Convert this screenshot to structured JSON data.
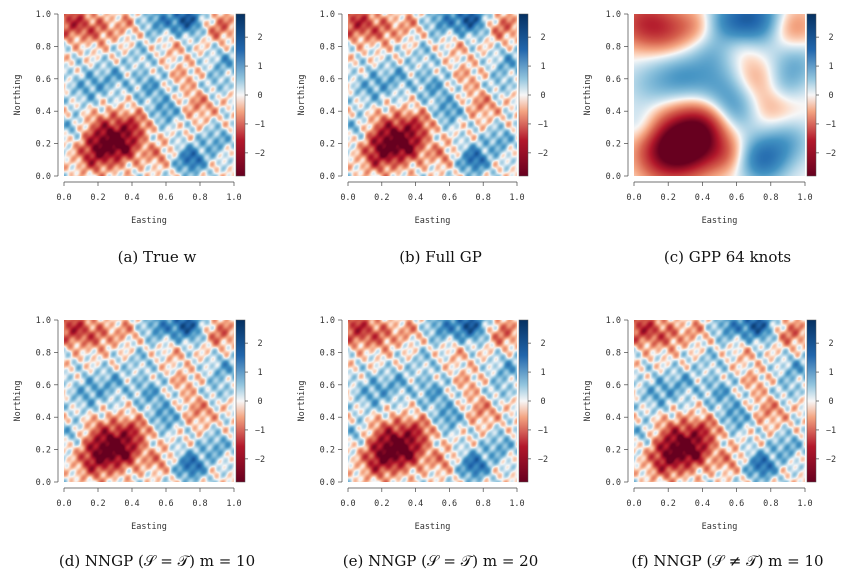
{
  "chart_data": [
    {
      "type": "heatmap",
      "caption": "(a)  True w",
      "variant": "fine",
      "seed": 1,
      "xlabel": "Easting",
      "ylabel": "Northing",
      "xlim": [
        0,
        1
      ],
      "ylim": [
        0,
        1
      ],
      "xticks": [
        "0.0",
        "0.2",
        "0.4",
        "0.6",
        "0.8",
        "1.0"
      ],
      "yticks": [
        "0.0",
        "0.2",
        "0.4",
        "0.6",
        "0.8",
        "1.0"
      ],
      "colorbar_ticks": [
        "2",
        "1",
        "0",
        "−1",
        "−2"
      ],
      "colorbar_range": [
        -2.8,
        2.8
      ]
    },
    {
      "type": "heatmap",
      "caption": "(b)  Full GP",
      "variant": "fine",
      "seed": 1,
      "xlabel": "Easting",
      "ylabel": "Northing",
      "xlim": [
        0,
        1
      ],
      "ylim": [
        0,
        1
      ],
      "xticks": [
        "0.0",
        "0.2",
        "0.4",
        "0.6",
        "0.8",
        "1.0"
      ],
      "yticks": [
        "0.0",
        "0.2",
        "0.4",
        "0.6",
        "0.8",
        "1.0"
      ],
      "colorbar_ticks": [
        "2",
        "1",
        "0",
        "−1",
        "−2"
      ],
      "colorbar_range": [
        -2.8,
        2.8
      ]
    },
    {
      "type": "heatmap",
      "caption": "(c)  GPP 64 knots",
      "variant": "smooth",
      "seed": 1,
      "xlabel": "Easting",
      "ylabel": "Northing",
      "xlim": [
        0,
        1
      ],
      "ylim": [
        0,
        1
      ],
      "xticks": [
        "0.0",
        "0.2",
        "0.4",
        "0.6",
        "0.8",
        "1.0"
      ],
      "yticks": [
        "0.0",
        "0.2",
        "0.4",
        "0.6",
        "0.8",
        "1.0"
      ],
      "colorbar_ticks": [
        "2",
        "1",
        "0",
        "−1",
        "−2"
      ],
      "colorbar_range": [
        -2.8,
        2.8
      ]
    },
    {
      "type": "heatmap",
      "caption": "(d)  NNGP (𝒮 = 𝒯) m = 10",
      "variant": "fine",
      "seed": 1,
      "xlabel": "Easting",
      "ylabel": "Northing",
      "xlim": [
        0,
        1
      ],
      "ylim": [
        0,
        1
      ],
      "xticks": [
        "0.0",
        "0.2",
        "0.4",
        "0.6",
        "0.8",
        "1.0"
      ],
      "yticks": [
        "0.0",
        "0.2",
        "0.4",
        "0.6",
        "0.8",
        "1.0"
      ],
      "colorbar_ticks": [
        "2",
        "1",
        "0",
        "−1",
        "−2"
      ],
      "colorbar_range": [
        -2.8,
        2.8
      ]
    },
    {
      "type": "heatmap",
      "caption": "(e)  NNGP (𝒮 = 𝒯) m = 20",
      "variant": "fine",
      "seed": 1,
      "xlabel": "Easting",
      "ylabel": "Northing",
      "xlim": [
        0,
        1
      ],
      "ylim": [
        0,
        1
      ],
      "xticks": [
        "0.0",
        "0.2",
        "0.4",
        "0.6",
        "0.8",
        "1.0"
      ],
      "yticks": [
        "0.0",
        "0.2",
        "0.4",
        "0.6",
        "0.8",
        "1.0"
      ],
      "colorbar_ticks": [
        "2",
        "1",
        "0",
        "−1",
        "−2"
      ],
      "colorbar_range": [
        -2.8,
        2.8
      ]
    },
    {
      "type": "heatmap",
      "caption": "(f)  NNGP (𝒮 ≠ 𝒯) m = 10",
      "variant": "fine",
      "seed": 1,
      "xlabel": "Easting",
      "ylabel": "Northing",
      "xlim": [
        0,
        1
      ],
      "ylim": [
        0,
        1
      ],
      "xticks": [
        "0.0",
        "0.2",
        "0.4",
        "0.6",
        "0.8",
        "1.0"
      ],
      "yticks": [
        "0.0",
        "0.2",
        "0.4",
        "0.6",
        "0.8",
        "1.0"
      ],
      "colorbar_ticks": [
        "2",
        "1",
        "0",
        "−1",
        "−2"
      ],
      "colorbar_range": [
        -2.8,
        2.8
      ]
    }
  ],
  "colors": {
    "low": "#67001f",
    "mid": "#f7f7f7",
    "high": "#053061"
  }
}
